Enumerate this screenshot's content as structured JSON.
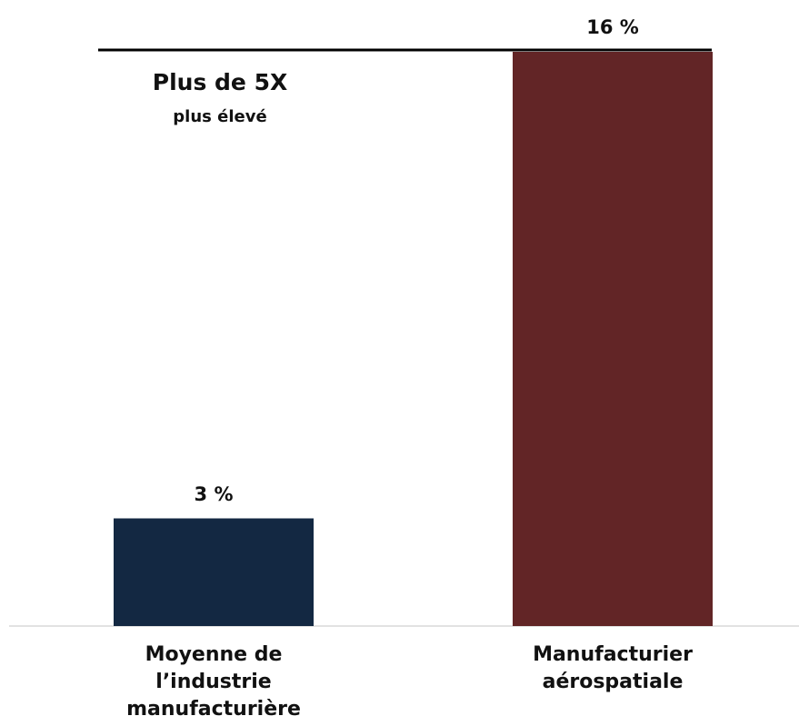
{
  "chart_data": {
    "type": "bar",
    "categories": [
      "Moyenne de l’industrie manufacturière",
      "Manufacturier aérospatiale"
    ],
    "values": [
      3,
      16
    ],
    "value_labels": [
      "3 %",
      "16 %"
    ],
    "colors": [
      "#132842",
      "#622526"
    ],
    "annotation": {
      "title": "Plus de 5X",
      "subtitle": "plus élevé"
    }
  }
}
